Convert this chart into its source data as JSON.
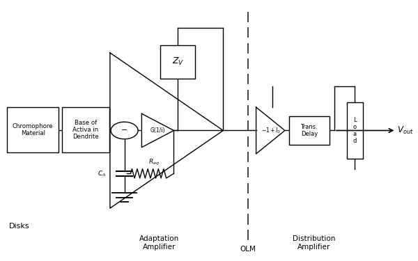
{
  "bg_color": "#ffffff",
  "line_color": "#000000",
  "fig_width": 6.0,
  "fig_height": 3.75,
  "dpi": 100,
  "labels": {
    "chromophore": "Chromophore\nMaterial",
    "base_activa": "Base of\nActiva in\nDendrite",
    "g1i": "G(1/i)",
    "zv": "Z_V",
    "neg1_i0": "-1 + I_0",
    "trans_delay": "Trans.\nDelay",
    "disks": "Disks",
    "adaptation": "Adaptation\nAmplifier",
    "distribution": "Distribution\nAmplifier",
    "olm": "OLM",
    "ca": "C_A",
    "req": "R_eq"
  }
}
